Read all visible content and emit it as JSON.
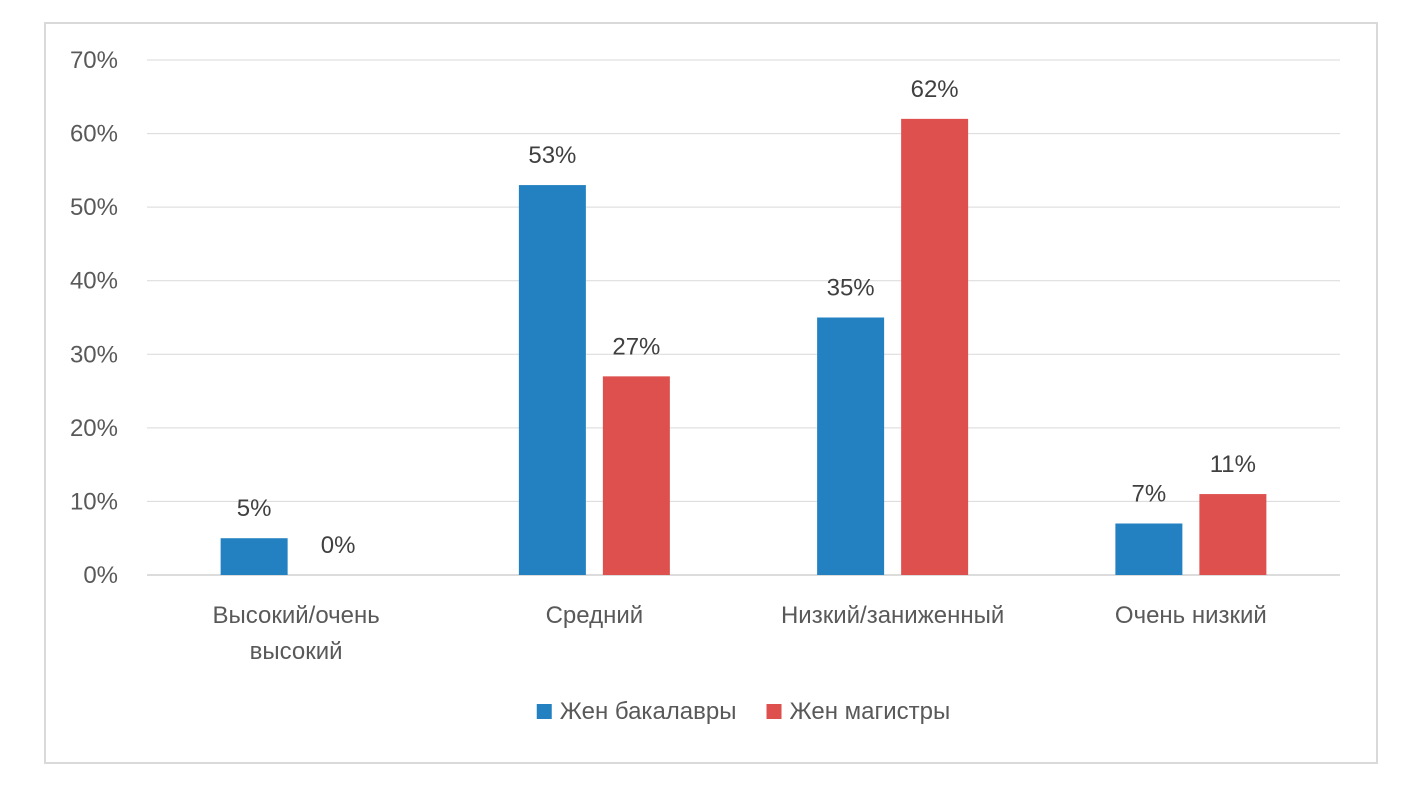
{
  "chart_data": {
    "type": "bar",
    "categories": [
      [
        "Высокий/очень",
        "высокий"
      ],
      [
        "Средний"
      ],
      [
        "Низкий/заниженный"
      ],
      [
        "Очень низкий"
      ]
    ],
    "series": [
      {
        "name": "Жен бакалавры",
        "color": "#2481c1",
        "values": [
          5,
          53,
          35,
          7
        ],
        "labels": [
          "5%",
          "53%",
          "35%",
          "7%"
        ]
      },
      {
        "name": "Жен магистры",
        "color": "#de504d",
        "values": [
          0,
          27,
          62,
          11
        ],
        "labels": [
          "0%",
          "27%",
          "62%",
          "11%"
        ]
      }
    ],
    "ylim": [
      0,
      70
    ],
    "yticks": [
      0,
      10,
      20,
      30,
      40,
      50,
      60,
      70
    ],
    "ytick_labels": [
      "0%",
      "10%",
      "20%",
      "30%",
      "40%",
      "50%",
      "60%",
      "70%"
    ],
    "grid": true,
    "legend_position": "bottom",
    "title": "",
    "xlabel": "",
    "ylabel": ""
  }
}
